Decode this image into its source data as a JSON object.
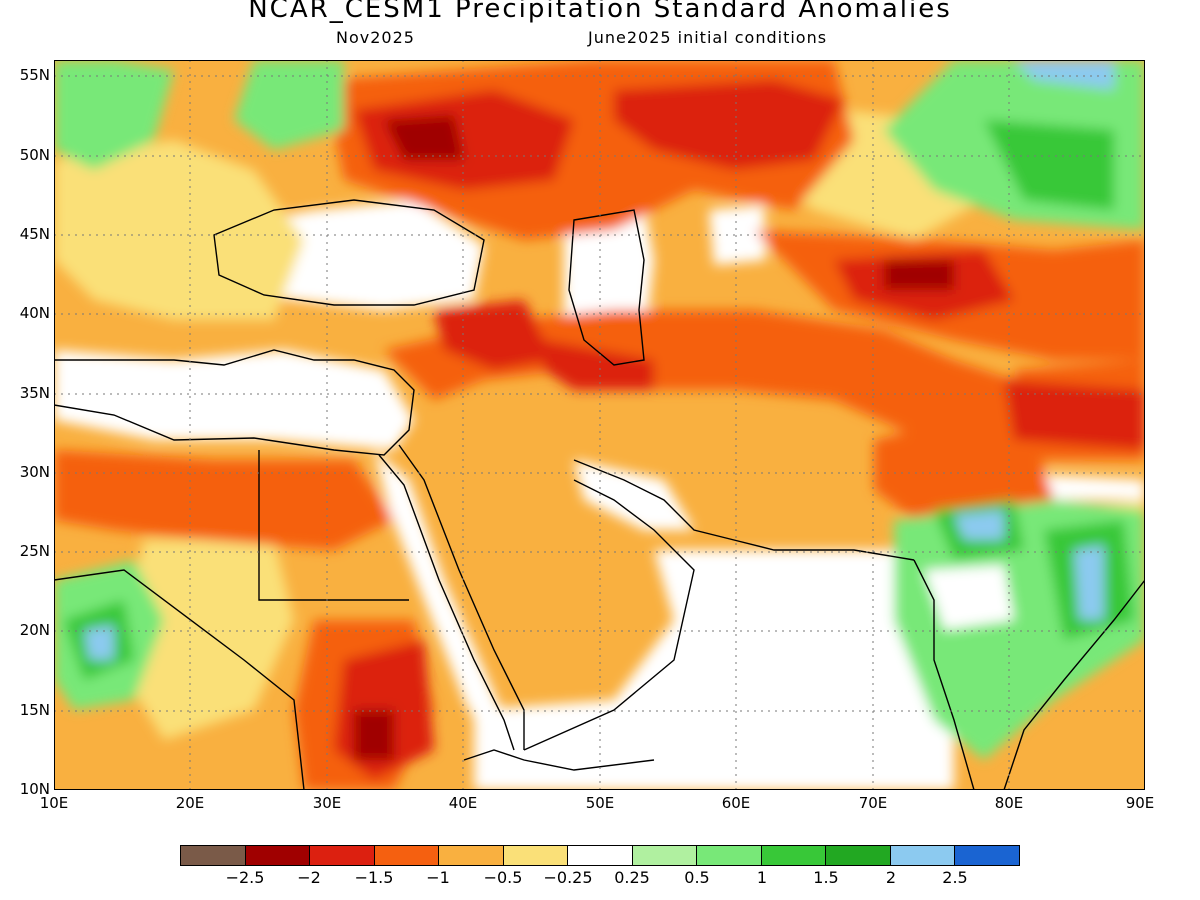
{
  "title": "NCAR_CESM1 Precipitation Standard Anomalies",
  "subtitle_left": "Nov2025",
  "subtitle_right": "June2025 initial conditions",
  "lat_labels": [
    "55N",
    "50N",
    "45N",
    "40N",
    "35N",
    "30N",
    "25N",
    "20N",
    "15N",
    "10N"
  ],
  "lon_labels": [
    "10E",
    "20E",
    "30E",
    "40E",
    "50E",
    "60E",
    "70E",
    "80E",
    "90E"
  ],
  "colorbar": {
    "colors": [
      "#7a5a48",
      "#a00000",
      "#dc2010",
      "#f56010",
      "#f9b040",
      "#fae078",
      "#ffffff",
      "#b0f0a0",
      "#78e878",
      "#38c838",
      "#22a822",
      "#8ccaf0",
      "#1a64d2"
    ],
    "labels": [
      "−2.5",
      "−2",
      "−1.5",
      "−1",
      "−0.5",
      "−0.25",
      "0.25",
      "0.5",
      "1",
      "1.5",
      "2",
      "2.5"
    ]
  }
}
